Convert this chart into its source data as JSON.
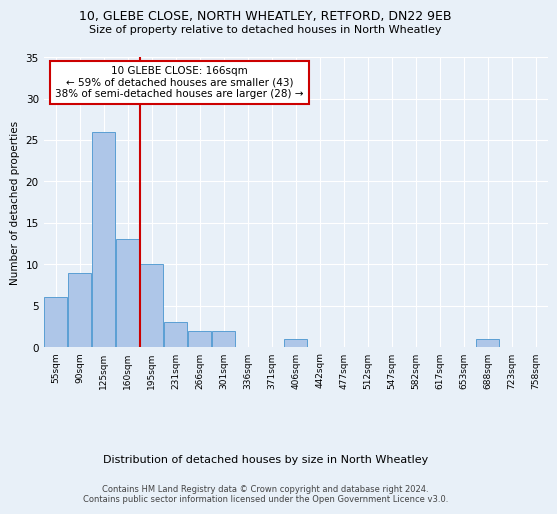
{
  "title1": "10, GLEBE CLOSE, NORTH WHEATLEY, RETFORD, DN22 9EB",
  "title2": "Size of property relative to detached houses in North Wheatley",
  "xlabel": "Distribution of detached houses by size in North Wheatley",
  "ylabel": "Number of detached properties",
  "bin_labels": [
    "55sqm",
    "90sqm",
    "125sqm",
    "160sqm",
    "195sqm",
    "231sqm",
    "266sqm",
    "301sqm",
    "336sqm",
    "371sqm",
    "406sqm",
    "442sqm",
    "477sqm",
    "512sqm",
    "547sqm",
    "582sqm",
    "617sqm",
    "653sqm",
    "688sqm",
    "723sqm",
    "758sqm"
  ],
  "bar_values": [
    6,
    9,
    26,
    13,
    10,
    3,
    2,
    2,
    0,
    0,
    1,
    0,
    0,
    0,
    0,
    0,
    0,
    0,
    1,
    0,
    0
  ],
  "bar_color": "#aec6e8",
  "bar_edge_color": "#5a9fd4",
  "vline_color": "#cc0000",
  "vline_pos": 3.5,
  "annotation_text": "10 GLEBE CLOSE: 166sqm\n← 59% of detached houses are smaller (43)\n38% of semi-detached houses are larger (28) →",
  "annotation_box_color": "#ffffff",
  "annotation_box_edge": "#cc0000",
  "ylim": [
    0,
    35
  ],
  "yticks": [
    0,
    5,
    10,
    15,
    20,
    25,
    30,
    35
  ],
  "footer": "Contains HM Land Registry data © Crown copyright and database right 2024.\nContains public sector information licensed under the Open Government Licence v3.0.",
  "bg_color": "#e8f0f8",
  "plot_bg_color": "#e8f0f8"
}
